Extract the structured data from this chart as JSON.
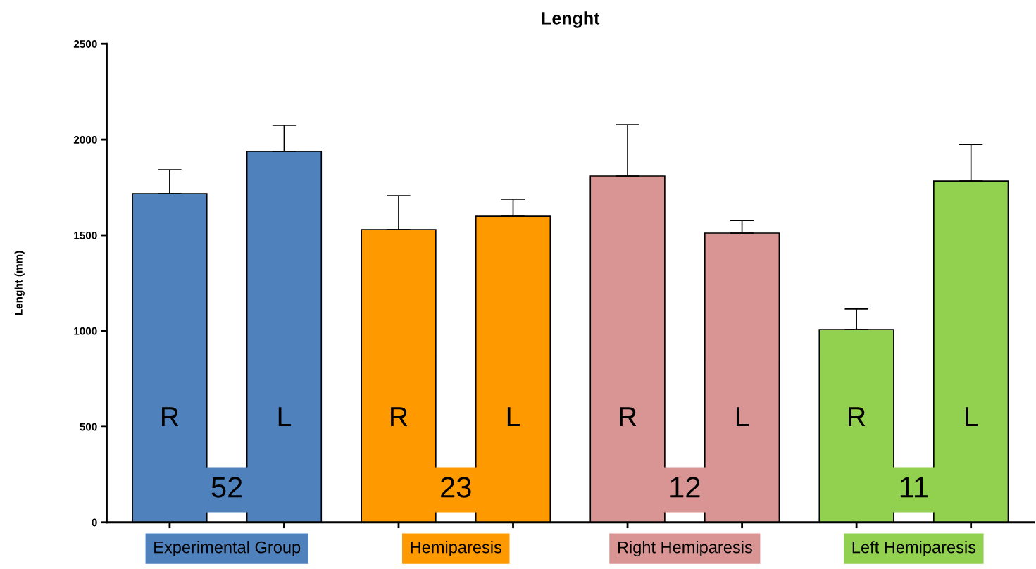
{
  "chart_data": {
    "type": "bar",
    "title": "Lenght",
    "ylabel": "Lenght (mm)",
    "categories": [
      "R",
      "L",
      "R",
      "L",
      "R",
      "L",
      "R",
      "L"
    ],
    "values": [
      1717,
      1938,
      1529,
      1599,
      1809,
      1511,
      1007,
      1783
    ],
    "errors": [
      [
        1717,
        1842
      ],
      [
        1938,
        2074
      ],
      [
        1529,
        1706
      ],
      [
        1599,
        1688
      ],
      [
        1809,
        2077
      ],
      [
        1511,
        1577
      ],
      [
        1007,
        1114
      ],
      [
        1783,
        1974
      ]
    ],
    "colors": [
      "#4f81bd",
      "#4f81bd",
      "#ff9900",
      "#ff9900",
      "#d99594",
      "#d99594",
      "#92d050",
      "#92d050"
    ],
    "ylim": [
      0,
      2500
    ],
    "yticks": [
      0,
      500,
      1000,
      1500,
      2000,
      2500
    ],
    "annotations": [
      "Experimental Group",
      "52",
      "Hemiparesis",
      "23",
      "Right Hemiparesis",
      "12",
      "Left Hemiparesis",
      "11"
    ]
  }
}
